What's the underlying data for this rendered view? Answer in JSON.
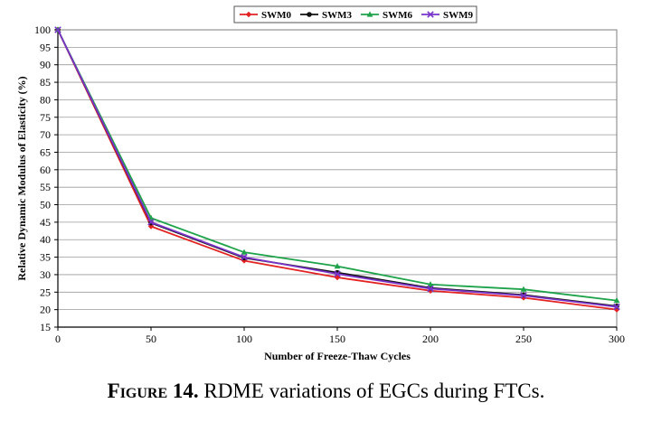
{
  "chart_data": {
    "type": "line",
    "x": [
      0,
      50,
      100,
      150,
      200,
      250,
      300
    ],
    "xlabel": "Number of Freeze-Thaw Cycles",
    "ylabel": "Relative Dynamic Modulus of Elasticity (%)",
    "xlim": [
      0,
      300
    ],
    "ylim": [
      15,
      100
    ],
    "xticks": [
      0,
      50,
      100,
      150,
      200,
      250,
      300
    ],
    "yticks": [
      15,
      20,
      25,
      30,
      35,
      40,
      45,
      50,
      55,
      60,
      65,
      70,
      75,
      80,
      85,
      90,
      95,
      100
    ],
    "grid": true,
    "legend_position": "top",
    "series": [
      {
        "name": "SWM0",
        "color": "#e32222",
        "marker": "diamond",
        "values": [
          100,
          43.8,
          34.0,
          29.2,
          25.4,
          23.4,
          20.0
        ]
      },
      {
        "name": "SWM3",
        "color": "#111111",
        "marker": "circle",
        "values": [
          100,
          44.8,
          34.8,
          30.6,
          26.2,
          24.2,
          21.0
        ]
      },
      {
        "name": "SWM6",
        "color": "#1ea34a",
        "marker": "triangle",
        "values": [
          100,
          46.2,
          36.4,
          32.4,
          27.2,
          25.8,
          22.6
        ]
      },
      {
        "name": "SWM9",
        "color": "#7a33c9",
        "marker": "cross",
        "values": [
          100,
          45.0,
          35.0,
          30.2,
          26.0,
          24.0,
          20.8
        ]
      }
    ]
  },
  "caption": {
    "label": "Figure 14.",
    "text": " RDME variations of EGCs during FTCs."
  }
}
